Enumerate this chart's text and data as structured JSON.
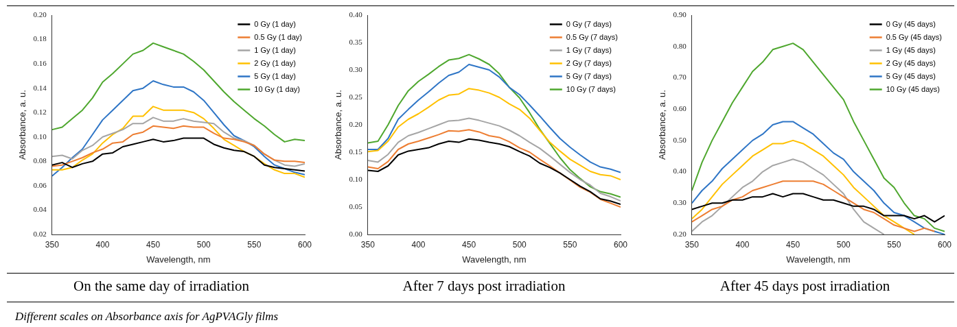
{
  "chart_data": [
    {
      "type": "line",
      "title": "On the same day of irradiation",
      "xlabel": "Wavelength, nm",
      "ylabel": "Absorbance, a. u.",
      "legend": "top right",
      "marker": "none",
      "x": [
        350,
        360,
        370,
        380,
        390,
        400,
        410,
        420,
        430,
        440,
        450,
        460,
        470,
        480,
        490,
        500,
        510,
        520,
        530,
        540,
        550,
        560,
        570,
        580,
        590,
        600
      ],
      "xlim": [
        350,
        600
      ],
      "xticks": [
        350,
        400,
        450,
        500,
        550,
        600
      ],
      "ylim": [
        0.02,
        0.2
      ],
      "yticks": [
        {
          "value": 0.02,
          "label": "0.02"
        },
        {
          "value": 0.04,
          "label": "0.04"
        },
        {
          "value": 0.06,
          "label": "0.06"
        },
        {
          "value": 0.08,
          "label": "0.08"
        },
        {
          "value": 0.1,
          "label": "0.10"
        },
        {
          "value": 0.12,
          "label": "0.12"
        },
        {
          "value": 0.14,
          "label": "0.14"
        },
        {
          "value": 0.16,
          "label": "0.16"
        },
        {
          "value": 0.18,
          "label": "0.18"
        },
        {
          "value": 0.2,
          "label": "0.20"
        }
      ],
      "annotations": [
        "Different scales on Absorbance axis for AgPVAGly films"
      ],
      "series": [
        {
          "name": "0 Gy (1 day)",
          "color": "#000000",
          "values": [
            0.077,
            0.079,
            0.075,
            0.078,
            0.08,
            0.086,
            0.087,
            0.092,
            0.094,
            0.096,
            0.098,
            0.096,
            0.097,
            0.099,
            0.099,
            0.099,
            0.094,
            0.091,
            0.089,
            0.088,
            0.084,
            0.077,
            0.075,
            0.074,
            0.073,
            0.072
          ]
        },
        {
          "name": "0.5 Gy (1 day)",
          "color": "#ed7d31",
          "values": [
            0.076,
            0.077,
            0.08,
            0.083,
            0.087,
            0.09,
            0.095,
            0.096,
            0.102,
            0.104,
            0.109,
            0.108,
            0.107,
            0.109,
            0.108,
            0.108,
            0.103,
            0.099,
            0.098,
            0.096,
            0.093,
            0.086,
            0.081,
            0.08,
            0.08,
            0.079
          ]
        },
        {
          "name": "1 Gy (1 day)",
          "color": "#a5a5a5",
          "values": [
            0.084,
            0.085,
            0.082,
            0.089,
            0.093,
            0.1,
            0.103,
            0.106,
            0.111,
            0.111,
            0.116,
            0.113,
            0.113,
            0.115,
            0.113,
            0.112,
            0.111,
            0.104,
            0.099,
            0.097,
            0.093,
            0.086,
            0.081,
            0.077,
            0.076,
            0.078
          ]
        },
        {
          "name": "2 Gy (1 day)",
          "color": "#ffc000",
          "values": [
            0.073,
            0.073,
            0.075,
            0.081,
            0.086,
            0.095,
            0.102,
            0.107,
            0.117,
            0.117,
            0.125,
            0.122,
            0.122,
            0.122,
            0.12,
            0.115,
            0.107,
            0.098,
            0.093,
            0.088,
            0.084,
            0.078,
            0.073,
            0.07,
            0.07,
            0.067
          ]
        },
        {
          "name": "5 Gy (1 day)",
          "color": "#2e75c6",
          "values": [
            0.068,
            0.075,
            0.083,
            0.09,
            0.102,
            0.114,
            0.122,
            0.13,
            0.138,
            0.14,
            0.146,
            0.143,
            0.141,
            0.141,
            0.137,
            0.13,
            0.12,
            0.11,
            0.101,
            0.097,
            0.092,
            0.084,
            0.077,
            0.074,
            0.071,
            0.069
          ]
        },
        {
          "name": "10 Gy (1 day)",
          "color": "#4ea72e",
          "values": [
            0.106,
            0.108,
            0.115,
            0.122,
            0.132,
            0.145,
            0.152,
            0.16,
            0.168,
            0.171,
            0.177,
            0.174,
            0.171,
            0.168,
            0.162,
            0.155,
            0.146,
            0.137,
            0.129,
            0.122,
            0.115,
            0.109,
            0.102,
            0.096,
            0.098,
            0.097
          ]
        }
      ]
    },
    {
      "type": "line",
      "title": "After 7 days post irradiation",
      "xlabel": "Wavelength, nm",
      "ylabel": "Absorbance, a. u.",
      "legend": "top right",
      "marker": "none",
      "x": [
        350,
        360,
        370,
        380,
        390,
        400,
        410,
        420,
        430,
        440,
        450,
        460,
        470,
        480,
        490,
        500,
        510,
        520,
        530,
        540,
        550,
        560,
        570,
        580,
        590,
        600
      ],
      "xlim": [
        350,
        600
      ],
      "xticks": [
        350,
        400,
        450,
        500,
        550,
        600
      ],
      "ylim": [
        0,
        0.4
      ],
      "yticks": [
        {
          "value": 0,
          "label": "0.00"
        },
        {
          "value": 0.05,
          "label": "0.05"
        },
        {
          "value": 0.1,
          "label": "0.10"
        },
        {
          "value": 0.15,
          "label": "0.15"
        },
        {
          "value": 0.2,
          "label": "0.20"
        },
        {
          "value": 0.25,
          "label": "0.25"
        },
        {
          "value": 0.3,
          "label": "0.30"
        },
        {
          "value": 0.35,
          "label": "0.35"
        },
        {
          "value": 0.4,
          "label": "0.40"
        }
      ],
      "series": [
        {
          "name": "0 Gy (7 days)",
          "color": "#000000",
          "values": [
            0.117,
            0.115,
            0.125,
            0.145,
            0.152,
            0.155,
            0.158,
            0.165,
            0.17,
            0.168,
            0.174,
            0.172,
            0.168,
            0.165,
            0.16,
            0.151,
            0.143,
            0.13,
            0.122,
            0.112,
            0.1,
            0.088,
            0.078,
            0.065,
            0.061,
            0.055
          ]
        },
        {
          "name": "0.5 Gy (7 days)",
          "color": "#ed7d31",
          "values": [
            0.123,
            0.12,
            0.133,
            0.155,
            0.165,
            0.17,
            0.176,
            0.182,
            0.189,
            0.188,
            0.191,
            0.187,
            0.18,
            0.177,
            0.169,
            0.158,
            0.15,
            0.137,
            0.125,
            0.112,
            0.099,
            0.086,
            0.077,
            0.064,
            0.057,
            0.05
          ]
        },
        {
          "name": "1 Gy (7 days)",
          "color": "#a5a5a5",
          "values": [
            0.135,
            0.132,
            0.146,
            0.168,
            0.18,
            0.186,
            0.193,
            0.2,
            0.207,
            0.208,
            0.212,
            0.208,
            0.203,
            0.198,
            0.19,
            0.18,
            0.168,
            0.157,
            0.143,
            0.128,
            0.113,
            0.1,
            0.09,
            0.075,
            0.069,
            0.061
          ]
        },
        {
          "name": "2 Gy (7 days)",
          "color": "#ffc000",
          "values": [
            0.151,
            0.153,
            0.17,
            0.196,
            0.21,
            0.22,
            0.232,
            0.245,
            0.254,
            0.256,
            0.266,
            0.263,
            0.258,
            0.25,
            0.238,
            0.228,
            0.212,
            0.19,
            0.168,
            0.152,
            0.137,
            0.126,
            0.115,
            0.109,
            0.107,
            0.1
          ]
        },
        {
          "name": "5 Gy (7 days)",
          "color": "#2e75c6",
          "values": [
            0.155,
            0.155,
            0.175,
            0.21,
            0.228,
            0.245,
            0.26,
            0.276,
            0.29,
            0.296,
            0.31,
            0.305,
            0.3,
            0.287,
            0.268,
            0.255,
            0.236,
            0.216,
            0.195,
            0.175,
            0.159,
            0.145,
            0.132,
            0.123,
            0.119,
            0.113
          ]
        },
        {
          "name": "10 Gy (7 days)",
          "color": "#4ea72e",
          "values": [
            0.167,
            0.17,
            0.2,
            0.235,
            0.262,
            0.279,
            0.292,
            0.306,
            0.318,
            0.321,
            0.328,
            0.32,
            0.31,
            0.293,
            0.268,
            0.249,
            0.222,
            0.192,
            0.166,
            0.14,
            0.118,
            0.102,
            0.087,
            0.078,
            0.074,
            0.068
          ]
        }
      ]
    },
    {
      "type": "line",
      "title": "After 45 days post irradiation",
      "xlabel": "Wavelength, nm",
      "ylabel": "Absorbance, a. u.",
      "legend": "top right",
      "marker": "none",
      "x": [
        350,
        360,
        370,
        380,
        390,
        400,
        410,
        420,
        430,
        440,
        450,
        460,
        470,
        480,
        490,
        500,
        510,
        520,
        530,
        540,
        550,
        560,
        570,
        580,
        590,
        600
      ],
      "xlim": [
        350,
        600
      ],
      "xticks": [
        350,
        400,
        450,
        500,
        550,
        600
      ],
      "ylim": [
        0.2,
        0.9
      ],
      "yticks": [
        {
          "value": 0.2,
          "label": "0.20"
        },
        {
          "value": 0.3,
          "label": "0.30"
        },
        {
          "value": 0.4,
          "label": "0.40"
        },
        {
          "value": 0.5,
          "label": "0.50"
        },
        {
          "value": 0.6,
          "label": "0.60"
        },
        {
          "value": 0.7,
          "label": "0.70"
        },
        {
          "value": 0.8,
          "label": "0.80"
        },
        {
          "value": 0.9,
          "label": "0.90"
        }
      ],
      "series": [
        {
          "name": "0 Gy (45 days)",
          "color": "#000000",
          "values": [
            0.28,
            0.29,
            0.3,
            0.3,
            0.31,
            0.31,
            0.32,
            0.32,
            0.33,
            0.32,
            0.33,
            0.33,
            0.32,
            0.31,
            0.31,
            0.3,
            0.29,
            0.29,
            0.28,
            0.26,
            0.26,
            0.26,
            0.25,
            0.26,
            0.24,
            0.26
          ]
        },
        {
          "name": "0.5 Gy (45 days)",
          "color": "#ed7d31",
          "values": [
            0.24,
            0.26,
            0.28,
            0.29,
            0.31,
            0.32,
            0.34,
            0.35,
            0.36,
            0.37,
            0.37,
            0.37,
            0.37,
            0.36,
            0.34,
            0.32,
            0.3,
            0.28,
            0.27,
            0.25,
            0.23,
            0.22,
            0.21,
            0.22,
            0.21,
            null
          ]
        },
        {
          "name": "1 Gy (45 days)",
          "color": "#a5a5a5",
          "values": [
            0.21,
            0.24,
            0.26,
            0.29,
            0.32,
            0.35,
            0.37,
            0.4,
            0.42,
            0.43,
            0.44,
            0.43,
            0.41,
            0.39,
            0.36,
            0.33,
            0.28,
            0.24,
            0.22,
            0.2,
            null,
            null,
            null,
            null,
            null,
            null
          ]
        },
        {
          "name": "2 Gy (45 days)",
          "color": "#ffc000",
          "values": [
            0.25,
            0.28,
            0.32,
            0.36,
            0.39,
            0.42,
            0.45,
            0.47,
            0.49,
            0.49,
            0.5,
            0.49,
            0.47,
            0.45,
            0.42,
            0.39,
            0.35,
            0.32,
            0.29,
            0.26,
            0.24,
            0.22,
            0.2,
            null,
            null,
            null
          ]
        },
        {
          "name": "5 Gy (45 days)",
          "color": "#2e75c6",
          "values": [
            0.3,
            0.34,
            0.37,
            0.41,
            0.44,
            0.47,
            0.5,
            0.52,
            0.55,
            0.56,
            0.56,
            0.54,
            0.52,
            0.49,
            0.46,
            0.44,
            0.4,
            0.37,
            0.34,
            0.3,
            0.27,
            0.26,
            0.24,
            0.22,
            0.21,
            0.2
          ]
        },
        {
          "name": "10 Gy (45 days)",
          "color": "#4ea72e",
          "values": [
            0.34,
            0.43,
            0.5,
            0.56,
            0.62,
            0.67,
            0.72,
            0.75,
            0.79,
            0.8,
            0.81,
            0.79,
            0.75,
            0.71,
            0.67,
            0.63,
            0.56,
            0.5,
            0.44,
            0.38,
            0.35,
            0.3,
            0.26,
            0.25,
            0.22,
            0.21
          ]
        }
      ]
    }
  ]
}
